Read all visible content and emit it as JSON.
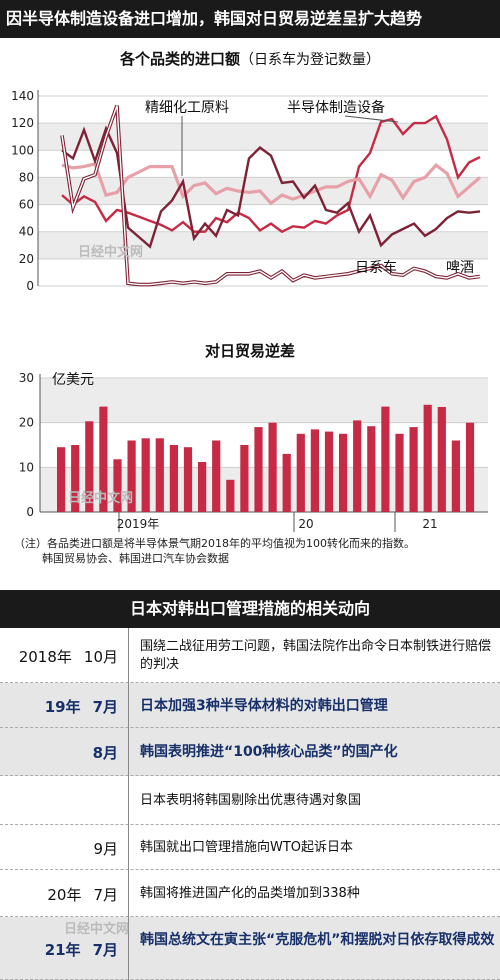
{
  "header": {
    "title": "因半导体制造设备进口增加，韩国对日贸易逆差呈扩大趋势"
  },
  "watermark": "日经中文网",
  "colors": {
    "semiconductor": "#c62a44",
    "fine_chemical": "#e8a0a8",
    "japanese_cars": "#7e2236",
    "beer": "#7e2236",
    "bar": "#c62a44"
  },
  "chart_data": [
    {
      "type": "line",
      "title": "各个品类的进口额",
      "title_note": "（日系车为登记数量）",
      "ylim": [
        0,
        140
      ],
      "yticks": [
        0,
        20,
        40,
        60,
        80,
        100,
        120,
        140
      ],
      "grid": "horizontal bands",
      "x_count": 39,
      "series": [
        {
          "name": "半导体制造设备",
          "values": [
            67,
            60,
            66,
            62,
            48,
            56,
            54,
            51,
            48,
            45,
            41,
            47,
            40,
            40,
            50,
            47,
            54,
            50,
            41,
            46,
            40,
            44,
            43,
            48,
            46,
            52,
            56,
            88,
            98,
            121,
            123,
            112,
            120,
            120,
            125,
            108,
            80,
            91,
            95
          ]
        },
        {
          "name": "精细化工原料",
          "values": [
            89,
            87,
            88,
            90,
            67,
            69,
            80,
            84,
            88,
            88,
            88,
            66,
            74,
            76,
            68,
            72,
            70,
            69,
            70,
            61,
            67,
            64,
            67,
            70,
            73,
            73,
            77,
            79,
            66,
            82,
            78,
            65,
            77,
            80,
            89,
            83,
            66,
            73,
            80
          ]
        },
        {
          "name": "日系车",
          "values": [
            100,
            94,
            115,
            92,
            116,
            98,
            43,
            36,
            29,
            55,
            63,
            77,
            35,
            46,
            37,
            56,
            52,
            94,
            102,
            96,
            76,
            77,
            65,
            74,
            56,
            54,
            61,
            40,
            52,
            30,
            38,
            42,
            46,
            37,
            42,
            50,
            55,
            54,
            55
          ]
        },
        {
          "name": "啤酒",
          "values": [
            111,
            58,
            79,
            82,
            110,
            133,
            2,
            1,
            1,
            2,
            3,
            2,
            3,
            2,
            3,
            9,
            9,
            9,
            11,
            6,
            11,
            4,
            8,
            6,
            7,
            8,
            9,
            11,
            13,
            15,
            9,
            8,
            13,
            11,
            7,
            6,
            9,
            6,
            7
          ]
        }
      ]
    },
    {
      "type": "bar",
      "title": "对日贸易逆差",
      "ylabel": "亿美元",
      "ylim": [
        0,
        30
      ],
      "yticks": [
        0,
        10,
        20,
        30
      ],
      "grid": "horizontal bands",
      "x_labels": [
        "2019年",
        "20",
        "21"
      ],
      "values": [
        14.5,
        15,
        20.3,
        23.6,
        11.8,
        16,
        16.5,
        16.5,
        15,
        14.5,
        11.2,
        16,
        7.2,
        15,
        19,
        20,
        13,
        17.5,
        18.5,
        18,
        17.5,
        20.5,
        19.2,
        23.6,
        17.5,
        19,
        24,
        23.5,
        16,
        20
      ]
    }
  ],
  "note": {
    "line1": "（注）各品类进口额是将半导体景气期2018年的平均值视为100转化而来的指数。",
    "line2": "韩国贸易协会、韩国进口汽车协会数据"
  },
  "section2": {
    "title": "日本对韩出口管理措施的相关动向",
    "rows": [
      {
        "year": "2018年",
        "month": "10月",
        "text": "围绕二战征用劳工问题，韩国法院作出命令日本制铁进行赔偿的判决",
        "shade": false,
        "blue": false
      },
      {
        "year": "19年",
        "month": "7月",
        "text": "日本加强3种半导体材料的对韩出口管理",
        "shade": true,
        "blue": true
      },
      {
        "year": "",
        "month": "8月",
        "text": "韩国表明推进“100种核心品类”的国产化",
        "shade": true,
        "blue": true
      },
      {
        "year": "",
        "month": "",
        "text": "日本表明将韩国剔除出优惠待遇对象国",
        "shade": false,
        "blue": false
      },
      {
        "year": "",
        "month": "9月",
        "text": "韩国就出口管理措施向WTO起诉日本",
        "shade": false,
        "blue": false
      },
      {
        "year": "20年",
        "month": "7月",
        "text": "韩国将推进国产化的品类增加到338种",
        "shade": false,
        "blue": false
      },
      {
        "year": "21年",
        "month": "7月",
        "text": "韩国总统文在寅主张“克服危机”和摆脱对日依存取得成效",
        "shade": true,
        "blue": true
      }
    ]
  }
}
